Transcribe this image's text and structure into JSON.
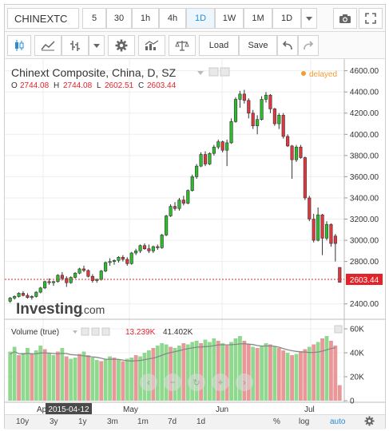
{
  "toolbar": {
    "symbol": "CHINEXTC",
    "intervals": [
      "5",
      "30",
      "1h",
      "4h",
      "1D",
      "1W",
      "1M"
    ],
    "active_interval": "1D",
    "interval_dropdown": "1D",
    "load_label": "Load",
    "save_label": "Save"
  },
  "legend": {
    "title": "Chinext Composite, China, D, SZ",
    "status": "delayed",
    "o_label": "O",
    "o_value": "2744.08",
    "h_label": "H",
    "h_value": "2744.08",
    "l_label": "L",
    "l_value": "2602.51",
    "c_label": "C",
    "c_value": "2603.44",
    "brand": "Investing",
    "brand_suffix": ".com"
  },
  "volume_legend": {
    "title": "Volume (true)",
    "value1": "13.239K",
    "value2": "41.402K"
  },
  "x_axis": {
    "labels": [
      "Apr",
      "May",
      "Jun",
      "Jul"
    ],
    "crosshair_date": "2015-04-12"
  },
  "price_axis": {
    "ticks": [
      4600,
      4400,
      4200,
      4000,
      3800,
      3600,
      3400,
      3200,
      3000,
      2800,
      2400
    ],
    "tick_labels": [
      "4600.00",
      "4400.00",
      "4200.00",
      "4000.00",
      "3800.00",
      "3600.00",
      "3400.00",
      "3200.00",
      "3000.00",
      "2800.00",
      "2400.00"
    ],
    "last_price_label": "2603.44"
  },
  "volume_axis": {
    "ticks": [
      60,
      40,
      20,
      0
    ],
    "tick_labels": [
      "60K",
      "40K",
      "20K",
      "0"
    ]
  },
  "bottom_bar": {
    "ranges": [
      "10y",
      "3y",
      "1y",
      "3m",
      "1m",
      "7d",
      "1d"
    ],
    "percent": "%",
    "log": "log",
    "auto": "auto"
  },
  "colors": {
    "up": "#2bbd2b",
    "down": "#e0383e",
    "vol_up": "#8fd98f",
    "vol_down": "#e89898",
    "accent": "#2a8bd6",
    "last_price_bg": "#e3232a"
  },
  "chart_data": {
    "type": "candlestick",
    "price_ylim": [
      2300,
      4650
    ],
    "volume_ylim": [
      0,
      62
    ],
    "candles": [
      [
        2425,
        2465,
        2410,
        2455,
        1
      ],
      [
        2455,
        2480,
        2440,
        2470,
        1
      ],
      [
        2470,
        2510,
        2460,
        2500,
        1
      ],
      [
        2500,
        2520,
        2470,
        2480,
        0
      ],
      [
        2480,
        2500,
        2450,
        2460,
        0
      ],
      [
        2460,
        2480,
        2440,
        2470,
        1
      ],
      [
        2470,
        2520,
        2460,
        2510,
        1
      ],
      [
        2510,
        2560,
        2500,
        2550,
        1
      ],
      [
        2550,
        2620,
        2540,
        2610,
        1
      ],
      [
        2610,
        2640,
        2580,
        2600,
        0
      ],
      [
        2600,
        2620,
        2570,
        2610,
        1
      ],
      [
        2610,
        2680,
        2600,
        2670,
        1
      ],
      [
        2670,
        2700,
        2620,
        2640,
        0
      ],
      [
        2640,
        2660,
        2560,
        2600,
        0
      ],
      [
        2600,
        2660,
        2590,
        2650,
        1
      ],
      [
        2650,
        2700,
        2640,
        2690,
        1
      ],
      [
        2690,
        2740,
        2680,
        2730,
        1
      ],
      [
        2730,
        2760,
        2700,
        2715,
        0
      ],
      [
        2715,
        2725,
        2650,
        2660,
        0
      ],
      [
        2660,
        2680,
        2600,
        2620,
        0
      ],
      [
        2620,
        2640,
        2600,
        2630,
        1
      ],
      [
        2630,
        2720,
        2620,
        2710,
        1
      ],
      [
        2710,
        2800,
        2700,
        2790,
        1
      ],
      [
        2790,
        2830,
        2760,
        2800,
        1
      ],
      [
        2800,
        2820,
        2770,
        2810,
        1
      ],
      [
        2810,
        2850,
        2790,
        2840,
        1
      ],
      [
        2840,
        2860,
        2800,
        2820,
        0
      ],
      [
        2820,
        2840,
        2760,
        2780,
        0
      ],
      [
        2780,
        2890,
        2770,
        2880,
        1
      ],
      [
        2880,
        2920,
        2860,
        2900,
        1
      ],
      [
        2900,
        2960,
        2880,
        2950,
        1
      ],
      [
        2950,
        2970,
        2910,
        2920,
        0
      ],
      [
        2920,
        2960,
        2880,
        2900,
        0
      ],
      [
        2900,
        2950,
        2880,
        2940,
        1
      ],
      [
        2940,
        2960,
        2910,
        2930,
        0
      ],
      [
        2930,
        3060,
        2920,
        3050,
        1
      ],
      [
        3050,
        3240,
        3040,
        3230,
        1
      ],
      [
        3230,
        3340,
        3220,
        3320,
        1
      ],
      [
        3320,
        3360,
        3280,
        3300,
        0
      ],
      [
        3300,
        3400,
        3280,
        3380,
        1
      ],
      [
        3380,
        3420,
        3330,
        3350,
        0
      ],
      [
        3350,
        3480,
        3340,
        3470,
        1
      ],
      [
        3470,
        3620,
        3460,
        3600,
        1
      ],
      [
        3600,
        3720,
        3580,
        3700,
        1
      ],
      [
        3700,
        3830,
        3690,
        3810,
        1
      ],
      [
        3810,
        3840,
        3700,
        3720,
        0
      ],
      [
        3720,
        3830,
        3710,
        3820,
        1
      ],
      [
        3820,
        3900,
        3800,
        3880,
        1
      ],
      [
        3880,
        3950,
        3860,
        3930,
        1
      ],
      [
        3930,
        3940,
        3830,
        3850,
        0
      ],
      [
        3850,
        3950,
        3700,
        3920,
        1
      ],
      [
        3920,
        4150,
        3910,
        4120,
        1
      ],
      [
        4120,
        4350,
        4110,
        4330,
        1
      ],
      [
        4330,
        4410,
        4250,
        4380,
        1
      ],
      [
        4380,
        4420,
        4290,
        4320,
        0
      ],
      [
        4320,
        4340,
        4150,
        4200,
        0
      ],
      [
        4200,
        4230,
        4050,
        4080,
        0
      ],
      [
        4080,
        4180,
        4000,
        4140,
        1
      ],
      [
        4140,
        4360,
        4130,
        4330,
        1
      ],
      [
        4330,
        4400,
        4300,
        4370,
        1
      ],
      [
        4370,
        4380,
        4200,
        4240,
        0
      ],
      [
        4240,
        4250,
        4080,
        4100,
        0
      ],
      [
        4100,
        4200,
        4050,
        4180,
        1
      ],
      [
        4180,
        4200,
        3960,
        3980,
        0
      ],
      [
        3980,
        4000,
        3880,
        3890,
        0
      ],
      [
        3890,
        3900,
        3580,
        3760,
        0
      ],
      [
        3760,
        3900,
        3740,
        3880,
        1
      ],
      [
        3880,
        3900,
        3770,
        3780,
        0
      ],
      [
        3780,
        3790,
        3380,
        3400,
        0
      ],
      [
        3400,
        3420,
        3180,
        3200,
        0
      ],
      [
        3200,
        3250,
        2980,
        3000,
        0
      ],
      [
        3000,
        3310,
        2990,
        3240,
        1
      ],
      [
        3240,
        3250,
        2860,
        3020,
        0
      ],
      [
        3020,
        3180,
        3000,
        3150,
        1
      ],
      [
        3150,
        3160,
        2940,
        2970,
        0
      ],
      [
        2970,
        3060,
        2800,
        3040,
        0
      ],
      [
        2744,
        2744,
        2602,
        2603,
        0
      ]
    ],
    "volumes": [
      [
        41,
        1
      ],
      [
        45,
        1
      ],
      [
        38,
        0
      ],
      [
        40,
        1
      ],
      [
        44,
        1
      ],
      [
        39,
        0
      ],
      [
        42,
        1
      ],
      [
        46,
        1
      ],
      [
        43,
        0
      ],
      [
        40,
        1
      ],
      [
        38,
        1
      ],
      [
        41,
        0
      ],
      [
        44,
        1
      ],
      [
        37,
        0
      ],
      [
        35,
        1
      ],
      [
        36,
        1
      ],
      [
        39,
        0
      ],
      [
        41,
        1
      ],
      [
        38,
        0
      ],
      [
        36,
        1
      ],
      [
        34,
        1
      ],
      [
        33,
        0
      ],
      [
        35,
        1
      ],
      [
        37,
        1
      ],
      [
        36,
        0
      ],
      [
        34,
        1
      ],
      [
        33,
        0
      ],
      [
        35,
        1
      ],
      [
        36,
        1
      ],
      [
        38,
        0
      ],
      [
        37,
        1
      ],
      [
        40,
        1
      ],
      [
        42,
        1
      ],
      [
        44,
        0
      ],
      [
        46,
        1
      ],
      [
        48,
        1
      ],
      [
        47,
        1
      ],
      [
        45,
        0
      ],
      [
        44,
        1
      ],
      [
        46,
        1
      ],
      [
        48,
        0
      ],
      [
        47,
        1
      ],
      [
        49,
        1
      ],
      [
        50,
        1
      ],
      [
        48,
        0
      ],
      [
        51,
        1
      ],
      [
        49,
        1
      ],
      [
        52,
        1
      ],
      [
        50,
        0
      ],
      [
        48,
        1
      ],
      [
        46,
        0
      ],
      [
        49,
        1
      ],
      [
        52,
        1
      ],
      [
        54,
        1
      ],
      [
        50,
        0
      ],
      [
        47,
        0
      ],
      [
        45,
        1
      ],
      [
        44,
        0
      ],
      [
        46,
        1
      ],
      [
        48,
        1
      ],
      [
        47,
        0
      ],
      [
        45,
        1
      ],
      [
        44,
        0
      ],
      [
        42,
        0
      ],
      [
        40,
        1
      ],
      [
        38,
        0
      ],
      [
        39,
        1
      ],
      [
        41,
        0
      ],
      [
        43,
        0
      ],
      [
        45,
        1
      ],
      [
        47,
        0
      ],
      [
        49,
        1
      ],
      [
        52,
        0
      ],
      [
        54,
        1
      ],
      [
        50,
        0
      ],
      [
        46,
        0
      ],
      [
        13,
        0
      ]
    ],
    "volume_ma": [
      38,
      38,
      38,
      38,
      38,
      38,
      38,
      38,
      38,
      38
    ]
  }
}
